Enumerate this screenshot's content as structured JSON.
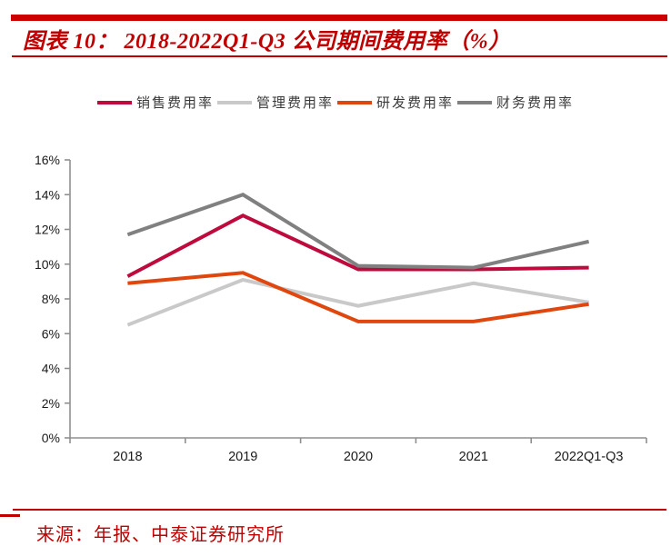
{
  "title": {
    "text": "图表 10： 2018-2022Q1-Q3 公司期间费用率（%）"
  },
  "source": {
    "text": "来源：年报、中泰证券研究所"
  },
  "colors": {
    "accent_red": "#c00000",
    "top_bar_red": "#cc0000",
    "axis_gray": "#8f8f8f",
    "tick_label_black": "#1a1a1a"
  },
  "chart_data": {
    "type": "line",
    "title": "2018-2022Q1-Q3 公司期间费用率（%）",
    "categories": [
      "2018",
      "2019",
      "2020",
      "2021",
      "2022Q1-Q3"
    ],
    "series": [
      {
        "key": "sales-expense-ratio",
        "name": "销售费用率",
        "color": "#be0a3c",
        "values": [
          9.3,
          12.8,
          9.7,
          9.7,
          9.8
        ]
      },
      {
        "key": "admin-expense-ratio",
        "name": "管理费用率",
        "color": "#c9c9c9",
        "values": [
          6.5,
          9.1,
          7.6,
          8.9,
          7.8
        ]
      },
      {
        "key": "rd-expense-ratio",
        "name": "研发费用率",
        "color": "#e0470f",
        "values": [
          8.9,
          9.5,
          6.7,
          6.7,
          7.7
        ]
      },
      {
        "key": "finance-expense-ratio",
        "name": "财务费用率",
        "color": "#808080",
        "values": [
          11.7,
          14.0,
          9.9,
          9.8,
          11.3
        ]
      }
    ],
    "ylim": [
      0,
      16
    ],
    "ytick_step": 2,
    "ytick_labels": [
      "0%",
      "2%",
      "4%",
      "6%",
      "8%",
      "10%",
      "12%",
      "14%",
      "16%"
    ],
    "xlabel": "",
    "ylabel": "",
    "grid": false,
    "legend_position": "top"
  }
}
